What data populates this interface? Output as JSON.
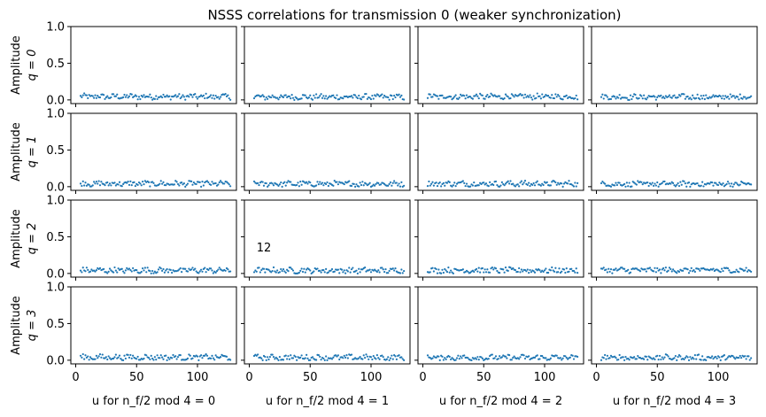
{
  "chart_data": {
    "type": "scatter",
    "title": "NSSS correlations for transmission 0 (weaker synchronization)",
    "rows": 4,
    "cols": 4,
    "ylim": [
      0,
      1
    ],
    "xlim": [
      -4,
      132
    ],
    "y_ticks": [
      0.0,
      0.5,
      1.0
    ],
    "y_tick_labels": [
      "0.0",
      "0.5",
      "1.0"
    ],
    "x_ticks": [
      0,
      50,
      100
    ],
    "x_tick_labels": [
      "0",
      "50",
      "100"
    ],
    "row_labels": [
      {
        "line1": "Amplitude",
        "line2": "q = 0"
      },
      {
        "line1": "Amplitude",
        "line2": "q = 1"
      },
      {
        "line1": "Amplitude",
        "line2": "q = 2"
      },
      {
        "line1": "Amplitude",
        "line2": "q = 3"
      }
    ],
    "col_labels": [
      "u for n_f/2 mod 4 = 0",
      "u for n_f/2 mod 4 = 1",
      "u for n_f/2 mod 4 = 2",
      "u for n_f/2 mod 4 = 3"
    ],
    "annotation": {
      "row": 2,
      "col": 1,
      "text": "12",
      "x": 6,
      "y": 0.3
    },
    "marker_color": "#1f77b4",
    "grid": false,
    "x_range": [
      4,
      127
    ],
    "n_points_per_panel": 124,
    "panel_mean_amplitude": [
      [
        0.045,
        0.04,
        0.045,
        0.04
      ],
      [
        0.04,
        0.038,
        0.04,
        0.036
      ],
      [
        0.042,
        0.04,
        0.042,
        0.045
      ],
      [
        0.04,
        0.036,
        0.035,
        0.035
      ]
    ],
    "panel_amplitude_range": [
      0.0,
      0.11
    ]
  }
}
